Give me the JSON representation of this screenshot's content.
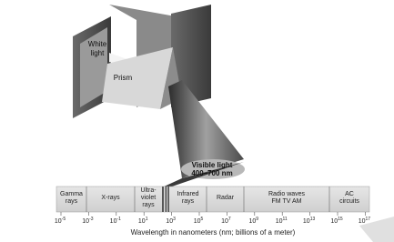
{
  "labels": {
    "white_light": [
      "White",
      "light"
    ],
    "prism": "Prism",
    "visible_light": [
      "Visible light",
      "400–700 nm"
    ]
  },
  "spectrum": {
    "bands": [
      [
        "Gamma",
        "rays"
      ],
      [
        "X-rays"
      ],
      [
        "Ultra-",
        "violet",
        "rays"
      ],
      [
        "Infrared",
        "rays"
      ],
      [
        "Radar"
      ],
      [
        "Radio waves",
        "FM TV AM"
      ],
      [
        "AC",
        "circuits"
      ]
    ],
    "ticks": [
      {
        "base": "10",
        "exp": "-5"
      },
      {
        "base": "10",
        "exp": "-3"
      },
      {
        "base": "10",
        "exp": "-1"
      },
      {
        "base": "10",
        "exp": "1"
      },
      {
        "base": "10",
        "exp": "3"
      },
      {
        "base": "10",
        "exp": "5"
      },
      {
        "base": "10",
        "exp": "7"
      },
      {
        "base": "10",
        "exp": "9"
      },
      {
        "base": "10",
        "exp": "11"
      },
      {
        "base": "10",
        "exp": "13"
      },
      {
        "base": "10",
        "exp": "15"
      },
      {
        "base": "10",
        "exp": "17"
      }
    ],
    "axis_label": "Wavelength in nanometers (nm; billions of a meter)"
  }
}
